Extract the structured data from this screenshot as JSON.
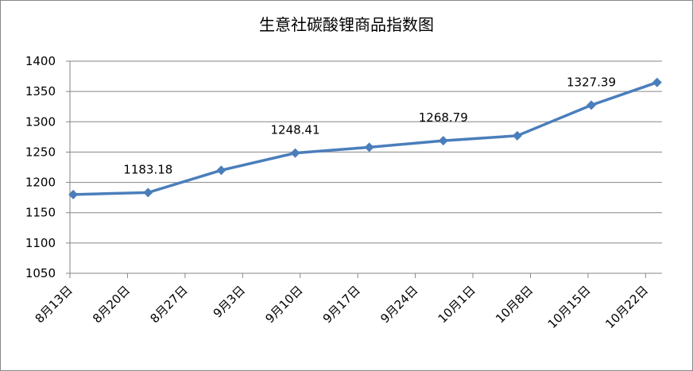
{
  "chart_data": {
    "type": "line",
    "title": "生意社碳酸锂商品指数图",
    "x": [
      0.4,
      9.5,
      18.4,
      27.4,
      36.4,
      45.4,
      54.4,
      63.4,
      71.4
    ],
    "series": [
      {
        "name": "生意社碳酸锂商品指数",
        "color": "#4a7ebb",
        "values": [
          1180,
          1183.18,
          1220,
          1248.41,
          1258,
          1268.79,
          1277,
          1327.39,
          1365
        ],
        "value_labels": [
          null,
          "1183.18",
          null,
          "1248.41",
          null,
          "1268.79",
          null,
          "1327.39",
          null
        ]
      }
    ],
    "xlim": [
      0,
      72
    ],
    "xticks": [
      {
        "value": 0,
        "label": "8月13日"
      },
      {
        "value": 7,
        "label": "8月20日"
      },
      {
        "value": 14,
        "label": "8月27日"
      },
      {
        "value": 21,
        "label": "9月3日"
      },
      {
        "value": 28,
        "label": "9月10日"
      },
      {
        "value": 35,
        "label": "9月17日"
      },
      {
        "value": 42,
        "label": "9月24日"
      },
      {
        "value": 49,
        "label": "10月1日"
      },
      {
        "value": 56,
        "label": "10月8日"
      },
      {
        "value": 63,
        "label": "10月15日"
      },
      {
        "value": 70,
        "label": "10月22日"
      }
    ],
    "ylim": [
      1050,
      1400
    ],
    "yticks": [
      1050,
      1100,
      1150,
      1200,
      1250,
      1300,
      1350,
      1400
    ],
    "grid": true,
    "legend": false
  }
}
